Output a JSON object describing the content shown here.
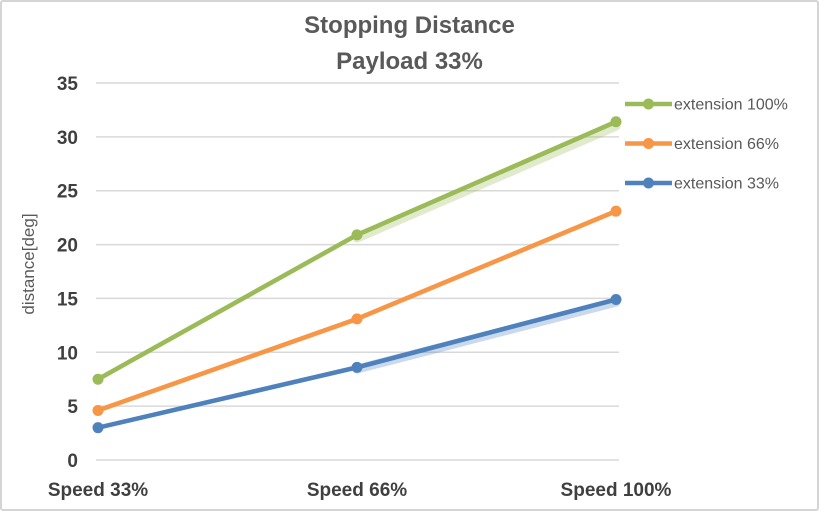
{
  "chart_data": {
    "type": "line",
    "title": "Stopping Distance",
    "subtitle": "Payload 33%",
    "ylabel": "distance[deg]",
    "xlabel": "",
    "categories": [
      "Speed 33%",
      "Speed 66%",
      "Speed 100%"
    ],
    "series": [
      {
        "name": "extension 100%",
        "color": "#9BBB59",
        "values": [
          7.5,
          20.9,
          31.4
        ],
        "ghost_values": [
          null,
          20.6,
          31.0
        ]
      },
      {
        "name": "extension 66%",
        "color": "#F79646",
        "values": [
          4.6,
          13.1,
          23.1
        ],
        "ghost_values": null
      },
      {
        "name": "extension 33%",
        "color": "#4F81BD",
        "values": [
          3.0,
          8.6,
          14.9
        ],
        "ghost_values": [
          null,
          8.45,
          14.65
        ]
      }
    ],
    "ylim": [
      0,
      35
    ],
    "ytick_step": 5,
    "grid": true,
    "legend_position": "right",
    "colors": {
      "grid": "#D9D9D9",
      "title_text": "#595959",
      "axis_text": "#3F3F3F",
      "legend_text": "#595959",
      "background": "#FFFFFF",
      "frame_border": "#D5D5D5"
    }
  }
}
